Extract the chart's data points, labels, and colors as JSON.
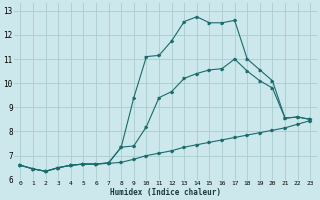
{
  "xlabel": "Humidex (Indice chaleur)",
  "bg_color": "#cce8ec",
  "grid_color": "#aacccc",
  "line_color": "#1a6b6b",
  "xlim": [
    -0.5,
    23.5
  ],
  "ylim": [
    6.0,
    13.3
  ],
  "xticks": [
    0,
    1,
    2,
    3,
    4,
    5,
    6,
    7,
    8,
    9,
    10,
    11,
    12,
    13,
    14,
    15,
    16,
    17,
    18,
    19,
    20,
    21,
    22,
    23
  ],
  "yticks": [
    6,
    7,
    8,
    9,
    10,
    11,
    12,
    13
  ],
  "line1_x": [
    0,
    1,
    2,
    3,
    4,
    5,
    6,
    7,
    8,
    9,
    10,
    11,
    12,
    13,
    14,
    15,
    16,
    17,
    18,
    19,
    20,
    21,
    22,
    23
  ],
  "line1_y": [
    6.6,
    6.45,
    6.35,
    6.5,
    6.6,
    6.65,
    6.65,
    6.68,
    6.72,
    6.85,
    7.0,
    7.1,
    7.2,
    7.35,
    7.45,
    7.55,
    7.65,
    7.75,
    7.85,
    7.95,
    8.05,
    8.15,
    8.3,
    8.45
  ],
  "line2_x": [
    0,
    1,
    2,
    3,
    4,
    5,
    6,
    7,
    8,
    9,
    10,
    11,
    12,
    13,
    14,
    15,
    16,
    17,
    18,
    19,
    20,
    21,
    22,
    23
  ],
  "line2_y": [
    6.6,
    6.45,
    6.35,
    6.5,
    6.6,
    6.65,
    6.65,
    6.7,
    7.35,
    7.4,
    8.2,
    9.4,
    9.65,
    10.2,
    10.4,
    10.55,
    10.6,
    11.0,
    10.5,
    10.1,
    9.8,
    8.55,
    8.6,
    8.5
  ],
  "line3_x": [
    0,
    1,
    2,
    3,
    4,
    5,
    6,
    7,
    8,
    9,
    10,
    11,
    12,
    13,
    14,
    15,
    16,
    17,
    18,
    19,
    20,
    21,
    22,
    23
  ],
  "line3_y": [
    6.6,
    6.45,
    6.35,
    6.5,
    6.6,
    6.65,
    6.65,
    6.7,
    7.35,
    9.4,
    11.1,
    11.15,
    11.75,
    12.55,
    12.75,
    12.5,
    12.5,
    12.6,
    11.0,
    10.55,
    10.1,
    8.55,
    8.6,
    8.5
  ]
}
